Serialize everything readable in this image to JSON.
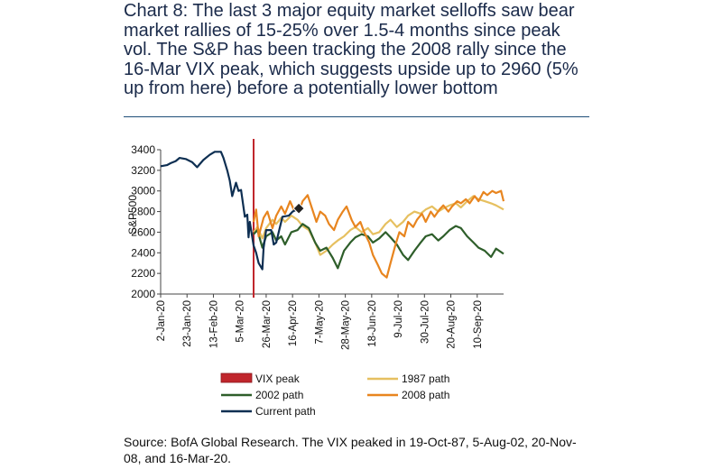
{
  "header": {
    "title": "Chart 8: The last 3 major equity market selloffs saw bear market rallies of 15-25% over 1.5-4 months since peak vol. The S&P has been tracking the 2008 rally since the 16-Mar VIX peak, which suggests upside up to 2960 (5% up from here) before a potentially lower bottom"
  },
  "footer": {
    "source": "Source: BofA Global Research. The VIX peaked in 19-Oct-87, 5-Aug-02, 20-Nov-08, and 16-Mar-20."
  },
  "colors": {
    "vix": "#c0262c",
    "p1987": "#e6c060",
    "p2002": "#2e5e2a",
    "p2008": "#e8851f",
    "current": "#0e2f52",
    "axis": "#444444"
  },
  "chart_data": {
    "type": "line",
    "ylabel": "S&P500",
    "ylim": [
      2000,
      3400
    ],
    "yticks": [
      2000,
      2200,
      2400,
      2600,
      2800,
      3000,
      3200,
      3400
    ],
    "ytick_labels": [
      "2000",
      "2200",
      "2400",
      "2600",
      "2800",
      "3000",
      "3200",
      "3400"
    ],
    "xlim": [
      "2020-01-02",
      "2020-10-01"
    ],
    "xticks": [
      "2020-01-02",
      "2020-01-23",
      "2020-02-13",
      "2020-03-05",
      "2020-03-26",
      "2020-04-16",
      "2020-05-07",
      "2020-05-28",
      "2020-06-18",
      "2020-07-09",
      "2020-07-30",
      "2020-08-20",
      "2020-09-10"
    ],
    "xtick_labels": [
      "2-Jan-20",
      "23-Jan-20",
      "13-Feb-20",
      "5-Mar-20",
      "26-Mar-20",
      "16-Apr-20",
      "7-May-20",
      "28-May-20",
      "18-Jun-20",
      "9-Jul-20",
      "30-Jul-20",
      "20-Aug-20",
      "10-Sep-20"
    ],
    "vix_peak_date": "2020-03-16",
    "marker": {
      "x": "2020-04-21",
      "y": 2830
    },
    "legend": [
      {
        "label": "VIX peak",
        "kind": "bar"
      },
      {
        "label": "1987 path",
        "kind": "line"
      },
      {
        "label": "2002 path",
        "kind": "line"
      },
      {
        "label": "2008 path",
        "kind": "line"
      },
      {
        "label": "Current path",
        "kind": "line"
      }
    ],
    "series": [
      {
        "name": "Current path",
        "x": [
          "2020-01-02",
          "2020-01-07",
          "2020-01-10",
          "2020-01-14",
          "2020-01-17",
          "2020-01-22",
          "2020-01-27",
          "2020-01-31",
          "2020-02-05",
          "2020-02-10",
          "2020-02-14",
          "2020-02-19",
          "2020-02-21",
          "2020-02-24",
          "2020-02-26",
          "2020-02-28",
          "2020-03-02",
          "2020-03-04",
          "2020-03-06",
          "2020-03-09",
          "2020-03-11",
          "2020-03-12",
          "2020-03-13",
          "2020-03-16",
          "2020-03-18",
          "2020-03-20",
          "2020-03-23",
          "2020-03-24",
          "2020-03-26",
          "2020-03-30",
          "2020-04-01",
          "2020-04-03",
          "2020-04-06",
          "2020-04-08",
          "2020-04-13",
          "2020-04-16",
          "2020-04-21"
        ],
        "y": [
          3240,
          3250,
          3270,
          3290,
          3320,
          3310,
          3280,
          3230,
          3300,
          3350,
          3380,
          3380,
          3320,
          3200,
          3100,
          2950,
          3080,
          3000,
          3010,
          2750,
          2770,
          2550,
          2700,
          2470,
          2400,
          2300,
          2240,
          2450,
          2620,
          2620,
          2480,
          2500,
          2650,
          2750,
          2760,
          2800,
          2830
        ]
      },
      {
        "name": "2008 path",
        "x": [
          "2020-03-16",
          "2020-03-18",
          "2020-03-20",
          "2020-03-24",
          "2020-03-27",
          "2020-03-31",
          "2020-04-03",
          "2020-04-07",
          "2020-04-10",
          "2020-04-14",
          "2020-04-17",
          "2020-04-21",
          "2020-04-24",
          "2020-04-28",
          "2020-05-01",
          "2020-05-05",
          "2020-05-08",
          "2020-05-12",
          "2020-05-15",
          "2020-05-19",
          "2020-05-22",
          "2020-05-26",
          "2020-05-29",
          "2020-06-02",
          "2020-06-05",
          "2020-06-09",
          "2020-06-12",
          "2020-06-16",
          "2020-06-19",
          "2020-06-23",
          "2020-06-26",
          "2020-06-30",
          "2020-07-03",
          "2020-07-07",
          "2020-07-10",
          "2020-07-14",
          "2020-07-17",
          "2020-07-21",
          "2020-07-24",
          "2020-07-28",
          "2020-07-31",
          "2020-08-04",
          "2020-08-07",
          "2020-08-11",
          "2020-08-14",
          "2020-08-18",
          "2020-08-21",
          "2020-08-25",
          "2020-08-28",
          "2020-09-01",
          "2020-09-04",
          "2020-09-08",
          "2020-09-11",
          "2020-09-15",
          "2020-09-18",
          "2020-09-22",
          "2020-09-25",
          "2020-09-29",
          "2020-10-01"
        ],
        "y": [
          2700,
          2820,
          2560,
          2740,
          2800,
          2640,
          2760,
          2850,
          2780,
          2900,
          2820,
          2800,
          2900,
          2960,
          2850,
          2700,
          2800,
          2760,
          2680,
          2620,
          2720,
          2800,
          2850,
          2720,
          2650,
          2700,
          2600,
          2500,
          2380,
          2280,
          2200,
          2160,
          2300,
          2480,
          2600,
          2560,
          2700,
          2650,
          2720,
          2780,
          2700,
          2800,
          2750,
          2820,
          2860,
          2800,
          2850,
          2900,
          2880,
          2920,
          2880,
          2950,
          2900,
          2990,
          2960,
          3000,
          2980,
          3000,
          2900
        ]
      },
      {
        "name": "2002 path",
        "x": [
          "2020-03-16",
          "2020-03-19",
          "2020-03-23",
          "2020-03-26",
          "2020-03-31",
          "2020-04-03",
          "2020-04-07",
          "2020-04-10",
          "2020-04-15",
          "2020-04-20",
          "2020-04-24",
          "2020-04-29",
          "2020-05-04",
          "2020-05-08",
          "2020-05-13",
          "2020-05-18",
          "2020-05-22",
          "2020-05-27",
          "2020-06-01",
          "2020-06-05",
          "2020-06-10",
          "2020-06-15",
          "2020-06-19",
          "2020-06-24",
          "2020-06-29",
          "2020-07-03",
          "2020-07-08",
          "2020-07-13",
          "2020-07-17",
          "2020-07-22",
          "2020-07-27",
          "2020-07-31",
          "2020-08-05",
          "2020-08-10",
          "2020-08-14",
          "2020-08-19",
          "2020-08-24",
          "2020-08-28",
          "2020-09-02",
          "2020-09-07",
          "2020-09-11",
          "2020-09-16",
          "2020-09-21",
          "2020-09-25",
          "2020-10-01"
        ],
        "y": [
          2580,
          2620,
          2450,
          2560,
          2600,
          2520,
          2560,
          2480,
          2600,
          2620,
          2680,
          2640,
          2500,
          2420,
          2450,
          2350,
          2250,
          2420,
          2500,
          2550,
          2580,
          2560,
          2500,
          2540,
          2600,
          2550,
          2480,
          2380,
          2330,
          2420,
          2500,
          2560,
          2580,
          2520,
          2560,
          2620,
          2660,
          2640,
          2560,
          2500,
          2450,
          2420,
          2360,
          2440,
          2390
        ]
      },
      {
        "name": "1987 path",
        "x": [
          "2020-03-16",
          "2020-03-19",
          "2020-03-23",
          "2020-03-26",
          "2020-03-31",
          "2020-04-03",
          "2020-04-07",
          "2020-04-10",
          "2020-04-15",
          "2020-04-20",
          "2020-04-24",
          "2020-04-29",
          "2020-05-04",
          "2020-05-08",
          "2020-05-13",
          "2020-05-18",
          "2020-05-22",
          "2020-05-27",
          "2020-06-01",
          "2020-06-05",
          "2020-06-10",
          "2020-06-15",
          "2020-06-19",
          "2020-06-24",
          "2020-06-29",
          "2020-07-03",
          "2020-07-08",
          "2020-07-13",
          "2020-07-17",
          "2020-07-22",
          "2020-07-27",
          "2020-07-31",
          "2020-08-05",
          "2020-08-10",
          "2020-08-14",
          "2020-08-19",
          "2020-08-24",
          "2020-08-28",
          "2020-09-02",
          "2020-09-07",
          "2020-09-11",
          "2020-09-16",
          "2020-09-21",
          "2020-09-25",
          "2020-10-01"
        ],
        "y": [
          2600,
          2650,
          2540,
          2640,
          2720,
          2680,
          2740,
          2700,
          2760,
          2720,
          2660,
          2620,
          2500,
          2380,
          2420,
          2480,
          2520,
          2560,
          2620,
          2650,
          2600,
          2640,
          2580,
          2600,
          2680,
          2720,
          2650,
          2700,
          2760,
          2800,
          2780,
          2820,
          2850,
          2800,
          2830,
          2860,
          2880,
          2840,
          2900,
          2950,
          2920,
          2900,
          2880,
          2860,
          2820
        ]
      }
    ]
  }
}
